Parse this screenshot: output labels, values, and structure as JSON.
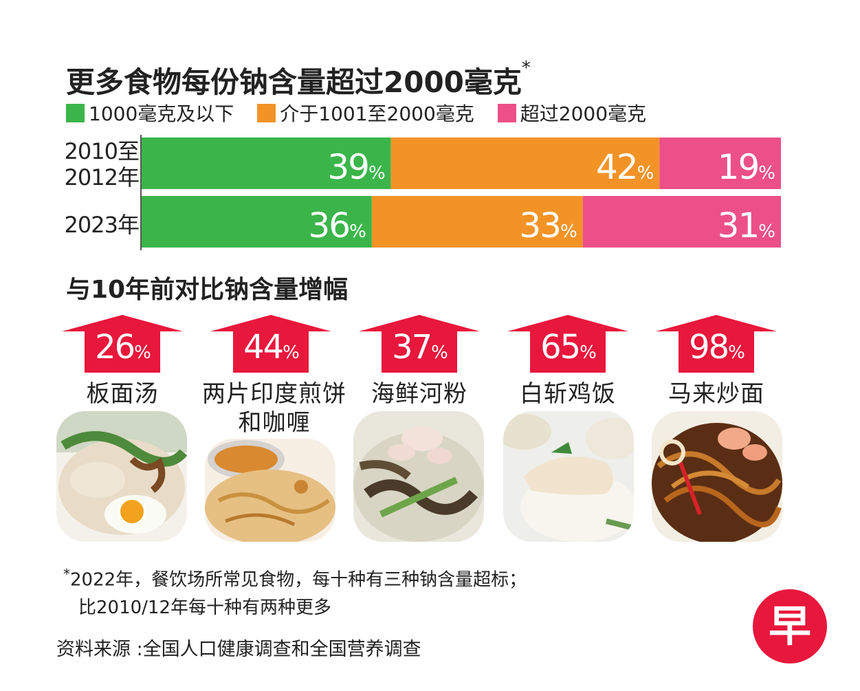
{
  "title": "更多食物每份钠含量超过2000毫克",
  "title_mark": "*",
  "legend": [
    {
      "label": "1000毫克及以下",
      "color": "#3bb54a"
    },
    {
      "label": "介于1001至2000毫克",
      "color": "#f39326"
    },
    {
      "label": "超过2000毫克",
      "color": "#ec5087"
    }
  ],
  "rows": [
    {
      "label_line1": "2010至",
      "label_line2": "2012年"
    },
    {
      "label_line1": "2023年",
      "label_line2": ""
    }
  ],
  "chart_data": [
    {
      "type": "bar",
      "stacked": true,
      "orientation": "horizontal",
      "title": "更多食物每份钠含量超过2000毫克",
      "categories": [
        "2010至2012年",
        "2023年"
      ],
      "series": [
        {
          "name": "1000毫克及以下",
          "color": "#3bb54a",
          "values": [
            39,
            36
          ]
        },
        {
          "name": "介于1001至2000毫克",
          "color": "#f39326",
          "values": [
            42,
            33
          ]
        },
        {
          "name": "超过2000毫克",
          "color": "#ec5087",
          "values": [
            19,
            31
          ]
        }
      ],
      "unit": "%",
      "xlim": [
        0,
        100
      ]
    },
    {
      "type": "bar",
      "title": "与10年前对比钠含量增幅",
      "categories": [
        "板面汤",
        "两片印度煎饼和咖喱",
        "海鲜河粉",
        "白斩鸡饭",
        "马来炒面"
      ],
      "values": [
        26,
        44,
        37,
        65,
        98
      ],
      "unit": "%"
    }
  ],
  "section2_title": "与10年前对比钠含量增幅",
  "arrow_color": "#e8173c",
  "dishes": [
    {
      "pct": "26",
      "name_line1": "板面汤",
      "name_line2": "",
      "photo": "ban-mian-soup-photo"
    },
    {
      "pct": "44",
      "name_line1": "两片印度煎饼",
      "name_line2": "和咖喱",
      "photo": "roti-prata-curry-photo"
    },
    {
      "pct": "37",
      "name_line1": "海鲜河粉",
      "name_line2": "",
      "photo": "seafood-hor-fun-photo"
    },
    {
      "pct": "65",
      "name_line1": "白斩鸡饭",
      "name_line2": "",
      "photo": "chicken-rice-photo"
    },
    {
      "pct": "98",
      "name_line1": "马来炒面",
      "name_line2": "",
      "photo": "mee-goreng-photo"
    }
  ],
  "pct_sign": "%",
  "footnote_mark": "*",
  "footnote_line1": "2022年，餐饮场所常见食物，每十种有三种钠含量超标；",
  "footnote_line2": "比2010/12年每十种有两种更多",
  "source": "资料来源 :全国人口健康调查和全国营养调查",
  "logo_text": "早",
  "logo_color": "#e8173c"
}
